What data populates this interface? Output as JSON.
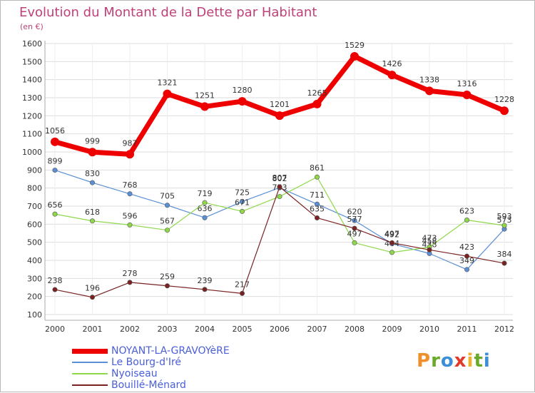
{
  "chart_data": {
    "type": "line",
    "title": "Evolution du Montant de la Dette par Habitant",
    "subtitle": "(en €)",
    "xlabel": "",
    "ylabel": "",
    "categories": [
      "2000",
      "2001",
      "2002",
      "2003",
      "2004",
      "2005",
      "2006",
      "2007",
      "2008",
      "2009",
      "2010",
      "2011",
      "2012"
    ],
    "ylim": [
      100,
      1600
    ],
    "yticks": [
      100,
      200,
      300,
      400,
      500,
      600,
      700,
      800,
      900,
      1000,
      1100,
      1200,
      1300,
      1400,
      1500,
      1600
    ],
    "grid": true,
    "legend_position": "bottom-left",
    "series": [
      {
        "name": "NOYANT-LA-GRAVOYèRE",
        "color": "#ee0000",
        "values": [
          1056,
          999,
          987,
          1321,
          1251,
          1280,
          1201,
          1265,
          1529,
          1426,
          1338,
          1316,
          1228
        ]
      },
      {
        "name": "Le Bourg-d'Iré",
        "color": "#5b8fd6",
        "values": [
          899,
          830,
          768,
          705,
          636,
          725,
          802,
          711,
          620,
          492,
          438,
          349,
          573
        ]
      },
      {
        "name": "Nyoiseau",
        "color": "#8fd84a",
        "values": [
          656,
          618,
          596,
          567,
          719,
          671,
          753,
          861,
          497,
          444,
          473,
          623,
          593
        ]
      },
      {
        "name": "Bouillé-Ménard",
        "color": "#7a2222",
        "values": [
          238,
          196,
          278,
          259,
          239,
          217,
          807,
          635,
          577,
          497,
          458,
          423,
          384
        ]
      }
    ]
  },
  "brand": {
    "name": "Proxiti",
    "letters": [
      "P",
      "r",
      "o",
      "x",
      "i",
      "t",
      "i"
    ],
    "colors": [
      "#f0902a",
      "#6aaa2a",
      "#3a8fd8",
      "#e03a2a",
      "#f0b02a",
      "#6aaa2a",
      "#3a8fd8"
    ]
  }
}
